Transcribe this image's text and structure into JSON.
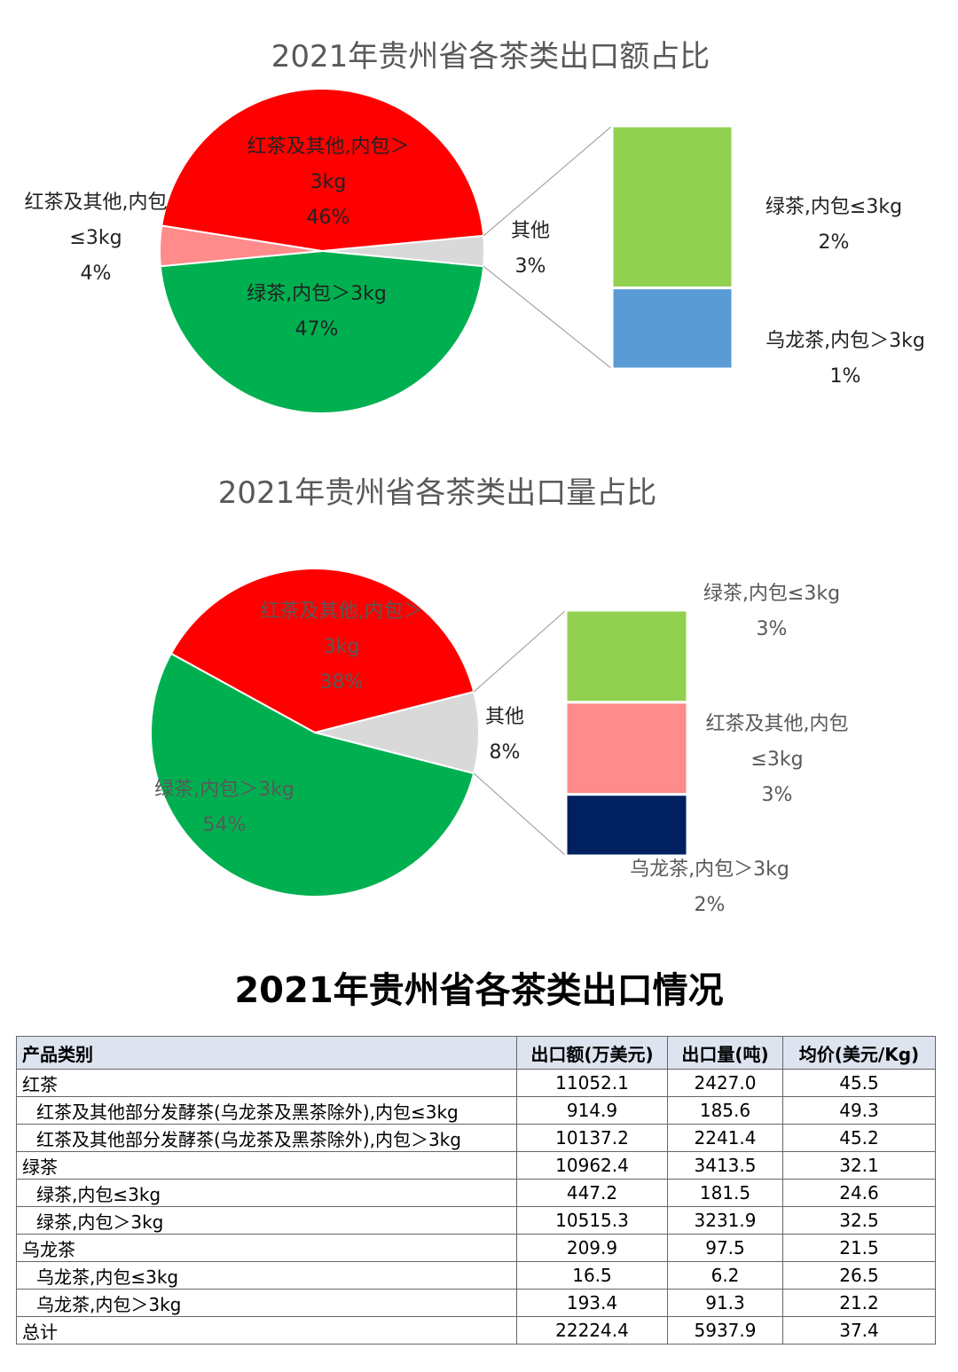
{
  "chart_data": [
    {
      "type": "bar-of-pie",
      "title": "2021年贵州省各茶类出口额占比",
      "categories": [
        "其他",
        "绿茶,内包＞3kg",
        "红茶及其他,内包≤3kg",
        "红茶及其他,内包＞3kg"
      ],
      "values": [
        3,
        47,
        4,
        46
      ],
      "value_labels": [
        "3%",
        "47%",
        "4%",
        "46%"
      ],
      "colors": [
        "#d9d9d9",
        "#00b050",
        "#ff8b8b",
        "#ff0000"
      ],
      "bar": {
        "categories": [
          "绿茶,内包≤3kg",
          "乌龙茶,内包＞3kg"
        ],
        "values": [
          2,
          1
        ],
        "value_labels": [
          "2%",
          "1%"
        ],
        "colors": [
          "#92d050",
          "#5b9bd5"
        ]
      }
    },
    {
      "type": "bar-of-pie",
      "title": "2021年贵州省各茶类出口量占比",
      "categories": [
        "其他",
        "绿茶,内包＞3kg",
        "红茶及其他,内包＞3kg"
      ],
      "values": [
        8,
        54,
        38
      ],
      "value_labels": [
        "8%",
        "54%",
        "38%"
      ],
      "colors": [
        "#d9d9d9",
        "#00b050",
        "#ff0000"
      ],
      "bar": {
        "categories": [
          "绿茶,内包≤3kg",
          "红茶及其他,内包≤3kg",
          "乌龙茶,内包＞3kg"
        ],
        "values": [
          3,
          3,
          2
        ],
        "value_labels": [
          "3%",
          "3%",
          "2%"
        ],
        "colors": [
          "#92d050",
          "#ff8b8b",
          "#002060"
        ]
      }
    }
  ],
  "table": {
    "title": "2021年贵州省各茶类出口情况",
    "header": [
      "产品类别",
      "出口额(万美元)",
      "出口量(吨)",
      "均价(美元/Kg)"
    ],
    "rows": [
      [
        "红茶",
        "11052.1",
        "2427.0",
        "45.5"
      ],
      [
        "红茶及其他部分发酵茶(乌龙茶及黑茶除外),内包≤3kg",
        "914.9",
        "185.6",
        "49.3"
      ],
      [
        "红茶及其他部分发酵茶(乌龙茶及黑茶除外),内包＞3kg",
        "10137.2",
        "2241.4",
        "45.2"
      ],
      [
        "绿茶",
        "10962.4",
        "3413.5",
        "32.1"
      ],
      [
        "绿茶,内包≤3kg",
        "447.2",
        "181.5",
        "24.6"
      ],
      [
        "绿茶,内包＞3kg",
        "10515.3",
        "3231.9",
        "32.5"
      ],
      [
        "乌龙茶",
        "209.9",
        "97.5",
        "21.5"
      ],
      [
        "乌龙茶,内包≤3kg",
        "16.5",
        "6.2",
        "26.5"
      ],
      [
        "乌龙茶,内包＞3kg",
        "193.4",
        "91.3",
        "21.2"
      ],
      [
        "总计",
        "22224.4",
        "5937.9",
        "37.4"
      ]
    ]
  }
}
